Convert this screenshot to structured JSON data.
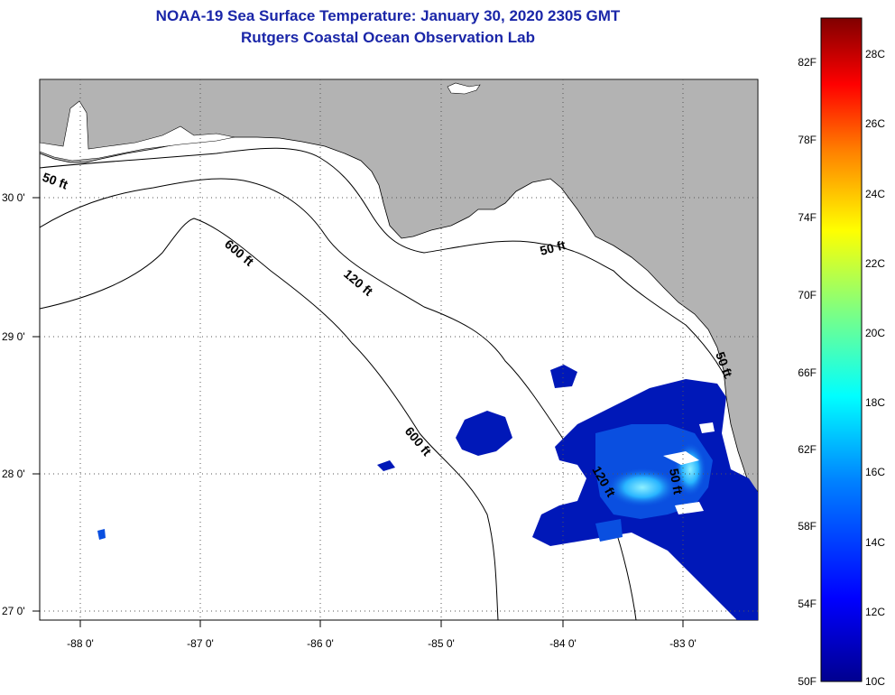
{
  "title_line1": "NOAA-19 Sea Surface Temperature:  January 30, 2020 2305 GMT",
  "title_line2": "Rutgers Coastal Ocean Observation Lab",
  "map": {
    "lon_labels": [
      "-88 0'",
      "-87 0'",
      "-86 0'",
      "-85 0'",
      "-84 0'",
      "-83 0'"
    ],
    "lat_labels": [
      "30 0'",
      "29 0'",
      "28 0'",
      "27 0'"
    ],
    "contour_labels": [
      "50 ft",
      "600 ft",
      "120 ft",
      "50 ft",
      "600 ft",
      "120 ft",
      "50 ft",
      "50 ft"
    ],
    "colors": {
      "land": "#b3b3b3",
      "ocean": "#ffffff",
      "sst_dark": "#0018b8",
      "sst_mid": "#0a4fe0",
      "sst_light": "#28b4ff",
      "sst_cyan": "#8ef0ff"
    }
  },
  "colorbar": {
    "fahrenheit_labels": [
      "82F",
      "78F",
      "74F",
      "70F",
      "66F",
      "62F",
      "58F",
      "54F",
      "50F"
    ],
    "celsius_labels": [
      "28C",
      "26C",
      "24C",
      "22C",
      "20C",
      "18C",
      "16C",
      "14C",
      "12C",
      "10C"
    ],
    "colors": [
      "#00008f",
      "#0000ff",
      "#0080ff",
      "#00ffff",
      "#80ff80",
      "#ffff00",
      "#ff8000",
      "#ff0000",
      "#800000"
    ]
  }
}
